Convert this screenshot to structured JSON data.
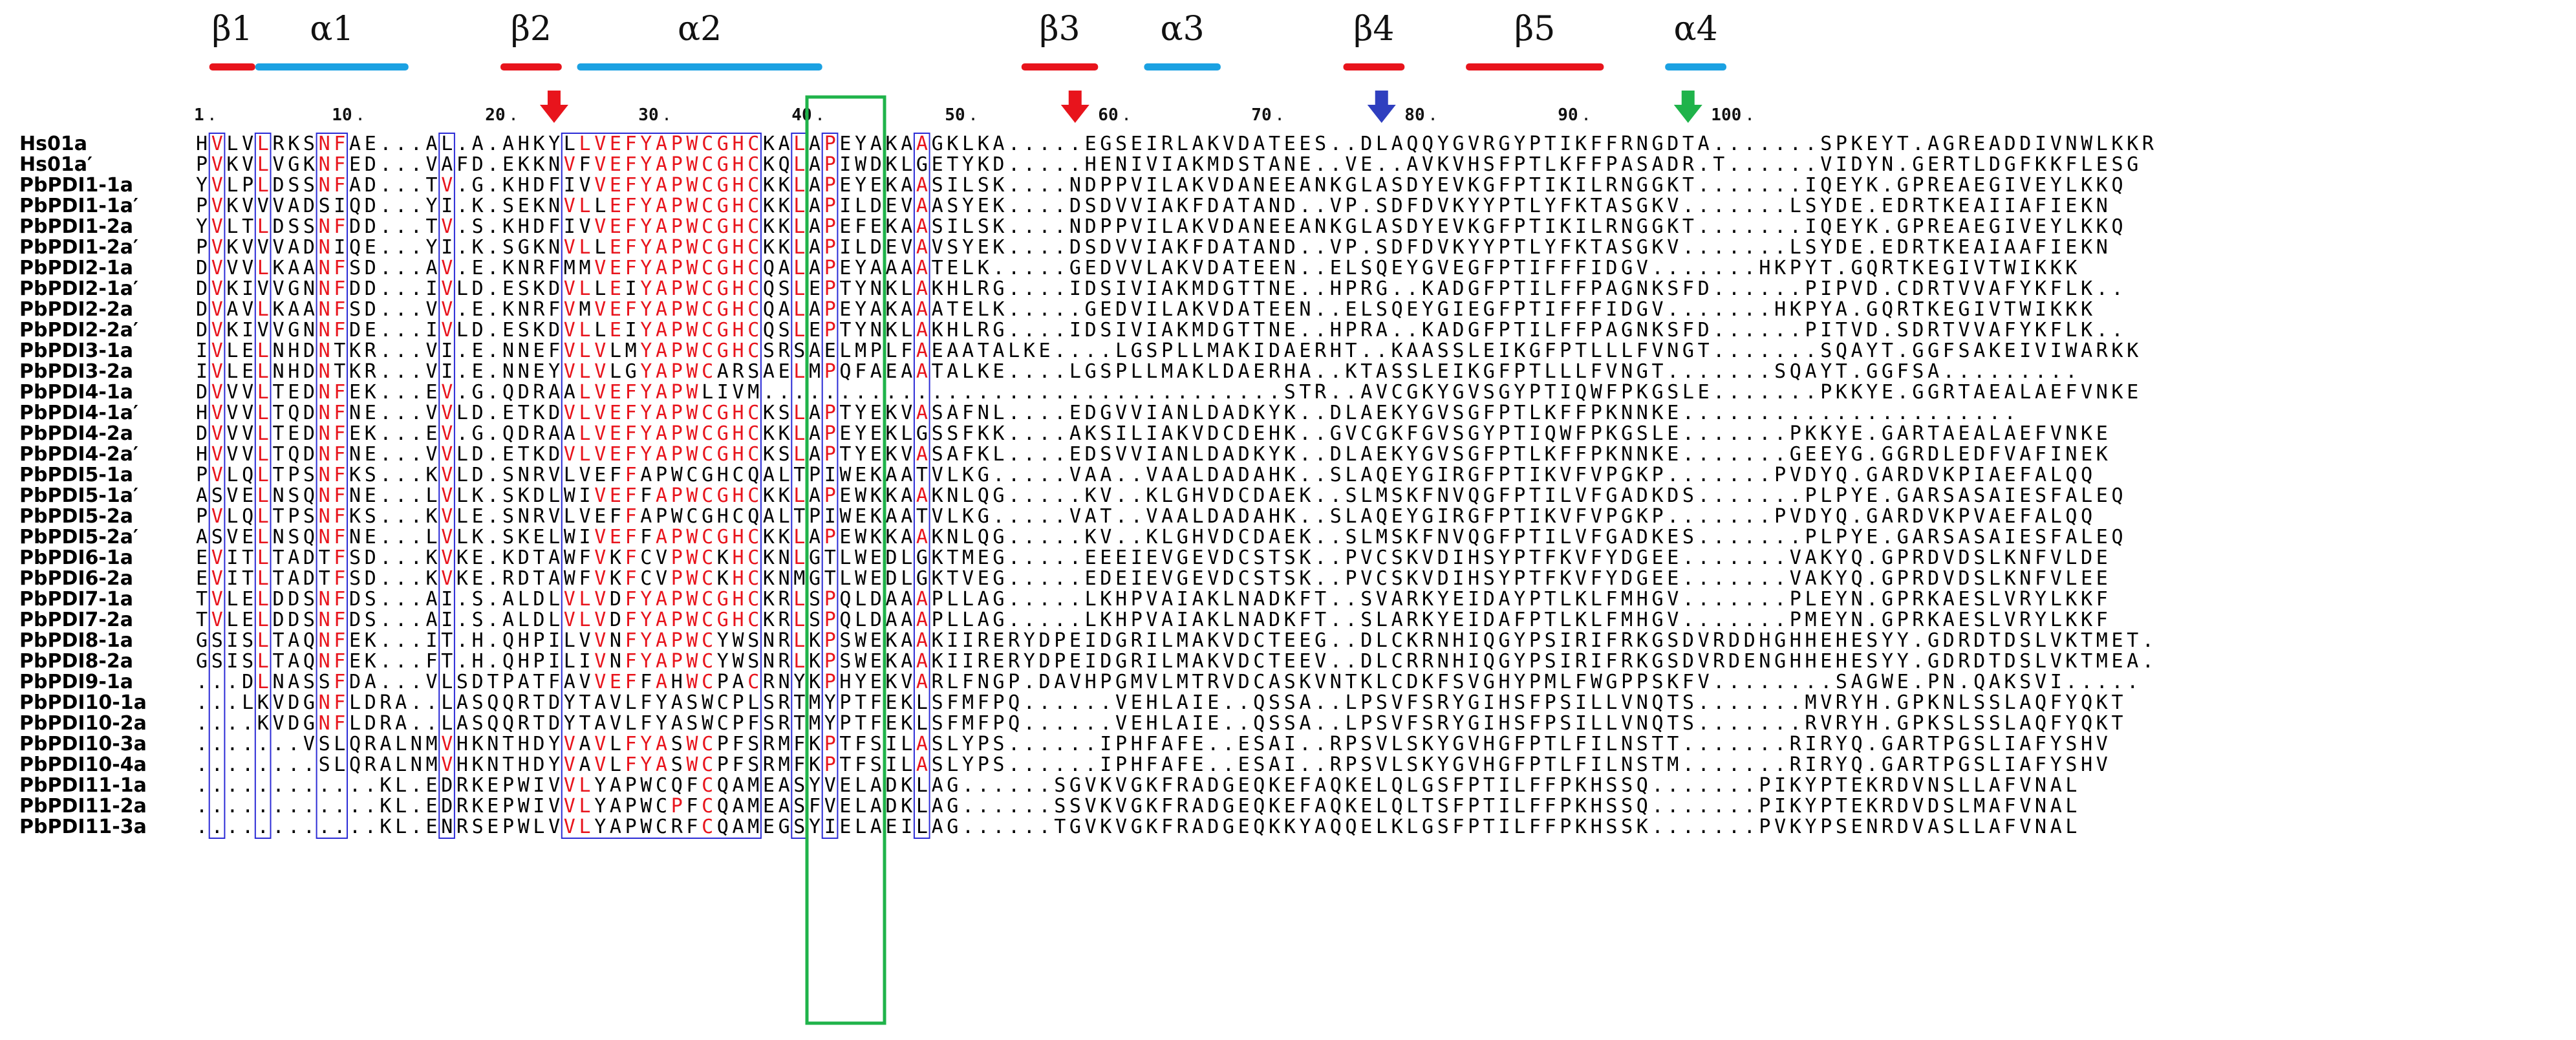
{
  "colors": {
    "strand": "#e8141c",
    "helix": "#1ba1e2",
    "identity_bg": "#e8141c",
    "similar_text": "#e8141c",
    "box": "#2b2bd6",
    "active_site_box": "#1fb34a",
    "arrow_red": "#e8141c",
    "arrow_blue": "#2f3fbf",
    "arrow_green": "#1fb34a"
  },
  "secondary_structure": [
    {
      "label": "β1",
      "type": "strand"
    },
    {
      "label": "α1",
      "type": "helix"
    },
    {
      "label": "β2",
      "type": "strand"
    },
    {
      "label": "α2",
      "type": "helix"
    },
    {
      "label": "β3",
      "type": "strand"
    },
    {
      "label": "α3",
      "type": "helix"
    },
    {
      "label": "β4",
      "type": "strand"
    },
    {
      "label": "β5",
      "type": "strand"
    },
    {
      "label": "α4",
      "type": "helix"
    }
  ],
  "markers": [
    {
      "color": "red",
      "icon": "down-arrow-icon",
      "column": 24
    },
    {
      "color": "red",
      "icon": "down-arrow-icon",
      "column": 58
    },
    {
      "color": "blue",
      "icon": "down-arrow-icon",
      "column": 78
    },
    {
      "color": "green",
      "icon": "down-arrow-icon",
      "column": 98
    }
  ],
  "ruler": [
    {
      "label": "1",
      "column": 1
    },
    {
      "label": "10",
      "column": 10
    },
    {
      "label": "20",
      "column": 20
    },
    {
      "label": "30",
      "column": 30
    },
    {
      "label": "40",
      "column": 40
    },
    {
      "label": "50",
      "column": 50
    },
    {
      "label": "60",
      "column": 60
    },
    {
      "label": "70",
      "column": 70
    },
    {
      "label": "80",
      "column": 80
    },
    {
      "label": "90",
      "column": 90
    },
    {
      "label": "100",
      "column": 100
    }
  ],
  "sequences": [
    {
      "name": "Hs01a",
      "seq": "HVLVLRKSNFAE...AL.A.AHKYLLVEFYAPWCGHCKALAPEYAKAAGKLKA.....EGSEIRLAKVDATEES..DLAQQYGVRGYPTIKFFRNGDTA.......SPKEYT.AGREADDIVNWLKKR"
    },
    {
      "name": "Hs01a′",
      "seq": "PVKVLVGKNFED...VAFD.EKKNVFVEFYAPWCGHCKQLAPIWDKLGETYKD.....HENIVIAKMDSTANE..VE..AVKVHSFPTLKFFPASADR.T......VIDYN.GERTLDGFKKFLESG"
    },
    {
      "name": "PbPDI1-1a",
      "seq": "YVLPLDSSNFAD...TV.G.KHDFIVVEFYAPWCGHCKKLAPEYEKAASILSK....NDPPVILAKVDANEEANKGLASDYEVKGFPTIKILRNGGKT.......IQEYK.GPREAEGIVEYLKKQ"
    },
    {
      "name": "PbPDI1-1a′",
      "seq": "PVKVVVADSIQD...YI.K.SEKNVLLEFYAPWCGHCKKLAPILDEVAASYEK....DSDVVIAKFDATAND..VP.SDFDVKYYPTLYFKTASGKV.......LSYDE.EDRTKEAIIAFIEKN"
    },
    {
      "name": "PbPDI1-2a",
      "seq": "YVLTLDSSNFDD...TV.S.KHDFIVVEFYAPWCGHCKKLAPEFEKAASILSK....NDPPVILAKVDANEEANKGLASDYEVKGFPTIKILRNGGKT.......IQEYK.GPREAEGIVEYLKKQ"
    },
    {
      "name": "PbPDI1-2a′",
      "seq": "PVKVVVADNIQE...YI.K.SGKNVLLEFYAPWCGHCKKLAPILDEVAVSYEK....DSDVVIAKFDATAND..VP.SDFDVKYYPTLYFKTASGKV.......LSYDE.EDRTKEAIAAFIEKN"
    },
    {
      "name": "PbPDI2-1a",
      "seq": "DVVVLKAANFSD...AV.E.KNRFMMVEFYAPWCGHCQALAPEYAAAATELK.....GEDVVLAKVDATEEN..ELSQEYGVEGFPTIFFFIDGV.......HKPYT.GQRTKEGIVTWIKKK"
    },
    {
      "name": "PbPDI2-1a′",
      "seq": "DVKIVVGNNFDD...IVLD.ESKDVLLEIYAPWCGHCQSLEPTYNKLAKHLRG....IDSIVIAKMDGTTNE..HPRG..KADGFPTILFFPAGNKSFD......PIPVD.CDRTVVAFYKFLK.."
    },
    {
      "name": "PbPDI2-2a",
      "seq": "DVAVLKAANFSD...VV.E.KNRFVMVEFYAPWCGHCQALAPEYAKAAATELK.....GEDVILAKVDATEEN..ELSQEYGIEGFPTIFFFIDGV.......HKPYA.GQRTKEGIVTWIKKK"
    },
    {
      "name": "PbPDI2-2a′",
      "seq": "DVKIVVGNNFDE...IVLD.ESKDVLLEIYAPWCGHCQSLEPTYNKLAKHLRG....IDSIVIAKMDGTTNE..HPRA..KADGFPTILFFPAGNKSFD......PITVD.SDRTVVAFYKFLK.."
    },
    {
      "name": "PbPDI3-1a",
      "seq": "IVLELNHDNTKR...VI.E.NNEFVLVLMYAPWCGHCSRSAELMPLFAEAATALKE....LGSPLLMAKIDAERHT..KAASSLEIKGFPTLLLFVNGT.......SQAYT.GGFSAKEIVIWARKK"
    },
    {
      "name": "PbPDI3-2a",
      "seq": "IVLELNHDNTKR...VI.E.NNEYVLVLGYAPWCARSAELMPQFAEAATALKE....LGSPLLMAKLDAERHA..KTASSLEIKGFPTLLLFVNGT.......SQAYT.GGFSA........."
    },
    {
      "name": "PbPDI4-1a",
      "seq": "DVVVLTEDNFEK...EV.G.QDRAALVEFYAPWLIVM..................................STR..AVCGKYGVSGYPTIQWFPKGSLE.......PKKYE.GGRTAEALAEFVNKE"
    },
    {
      "name": "PbPDI4-1a′",
      "seq": "HVVVLTQDNFNE...VVLD.ETKDVLVEFYAPWCGHCKSLAPTYEKVASAFNL....EDGVVIANLDADKYK..DLAEKYGVSGFPTLKFFPKNNKE......................"
    },
    {
      "name": "PbPDI4-2a",
      "seq": "DVVVLTEDNFEK...EV.G.QDRAALVEFYAPWCGHCKKLAPEYEKLGSSFKK....AKSILIAKVDCDEHK..GVCGKFGVSGYPTIQWFPKGSLE.......PKKYE.GARTAEALAEFVNKE"
    },
    {
      "name": "PbPDI4-2a′",
      "seq": "HVVVLTQDNFNE...VVLD.ETKDVLVEFYAPWCGHCKSLAPTYEKVASAFKL....EDSVVIANLDADKYK..DLAEKYGVSGFPTLKFFPKNNKE.......GEEYG.GGRDLEDFVAFINEK"
    },
    {
      "name": "PbPDI5-1a",
      "seq": "PVLQLTPSNFKS...KVLD.SNRVLVEFFAPWCGHCQALTPIWEKAATVLKG.....VAA..VAALDADAHK..SLAQEYGIRGFPTIKVFVPGKP.......PVDYQ.GARDVKPIAEFALQQ"
    },
    {
      "name": "PbPDI5-1a′",
      "seq": "ASVELNSQNFNE...LVLK.SKDLWIVEFFAPWCGHCKKLAPEWKKAAKNLQG.....KV..KLGHVDCDAEK..SLMSKFNVQGFPTILVFGADKDS.......PLPYE.GARSASAIESFALEQ"
    },
    {
      "name": "PbPDI5-2a",
      "seq": "PVLQLTPSNFKS...KVLE.SNRVLVEFFAPWCGHCQALTPIWEKAATVLKG.....VAT..VAALDADAHK..SLAQEYGIRGFPTIKVFVPGKP.......PVDYQ.GARDVKPVAEFALQQ"
    },
    {
      "name": "PbPDI5-2a′",
      "seq": "ASVELNSQNFNE...LVLK.SKELWIVEFFAPWCGHCKKLAPEWKKAAKNLQG.....KV..KLGHVDCDAEK..SLMSKFNVQGFPTILVFGADKES.......PLPYE.GARSASAIESFALEQ"
    },
    {
      "name": "PbPDI6-1a",
      "seq": "EVITLTADTFSD...KVKE.KDTAWFVKFCVPWCKHCKNLGTLWEDLGKTMEG.....EEEIEVGEVDCSTSK..PVCSKVDIHSYPTFKVFYDGEE.......VAKYQ.GPRDVDSLKNFVLDE"
    },
    {
      "name": "PbPDI6-2a",
      "seq": "EVITLTADTFSD...KVKE.RDTAWFVKFCVPWCKHCKNMGTLWEDLGKTVEG.....EDEIEVGEVDCSTSK..PVCSKVDIHSYPTFKVFYDGEE.......VAKYQ.GPRDVDSLKNFVLEE"
    },
    {
      "name": "PbPDI7-1a",
      "seq": "TVLELDDSNFDS...AI.S.ALDLVLVDFYAPWCGHCKRLSPQLDAAAPLLAG.....LKHPVAIAKLNADKFT..SVARKYEIDAYPTLKLFMHGV.......PLEYN.GPRKAESLVRYLKKF"
    },
    {
      "name": "PbPDI7-2a",
      "seq": "TVLELDDSNFDS...AI.S.ALDLVLVDFYAPWCGHCKRLSPQLDAAAPLLAG.....LKHPVAIAKLNADKFT..SLARKYEIDAFPTLKLFMHGV.......PMEYN.GPRKAESLVRYLKKF"
    },
    {
      "name": "PbPDI8-1a",
      "seq": "GSISLTAQNFEK...IT.H.QHPILVVNFYAPWCYWSNRLKPSWEKAAKIIRERYDPEIDGRILMAKVDCTEEG..DLCKRNHIQGYPSIRIFRKGSDVRDDHGHHEHESYY.GDRDTDSLVKTMET."
    },
    {
      "name": "PbPDI8-2a",
      "seq": "GSISLTAQNFEK...FT.H.QHPILIVNFYAPWCYWSNRLKPSWEKAAKIIRERYDPEIDGRILMAKVDCTEEV..DLCRRNHIQGYPSIRIFRKGSDVRDENGHHEHESYY.GDRDTDSLVKTMEA."
    },
    {
      "name": "PbPDI9-1a",
      "seq": "...DLNASSFDA...VLSDTPATFAVVEFFAHWCPACRNYKPHYEKVARLFNGP.DAVHPGMVLMTRVDCASKVNTKLCDKFSVGHYPMLFWGPPSKFV........SAGWE.PN.QAKSVI....."
    },
    {
      "name": "PbPDI10-1a",
      "seq": "...LKVDGNFLDRA..LASQQRTDYTAVLFYASWCPLSRTMYPTFEKLSFMFPQ......VEHLAIE..QSSA..LPSVFSRYGIHSFPSILLVNQTS.......MVRYH.GPKNLSSLAQFYQKT"
    },
    {
      "name": "PbPDI10-2a",
      "seq": "....KVDGNFLDRA..LASQQRTDYTAVLFYASWCPFSRTMYPTFEKLSFMFPQ......VEHLAIE..QSSA..LPSVFSRYGIHSFPSILLVNQTS.......RVRYH.GPKSLSSLAQFYQKT"
    },
    {
      "name": "PbPDI10-3a",
      "seq": ".......VSLQRALNMVHKNTHDYVAVLFYASWCPFSRMFKPTFSILASLYPS......IPHFAFE..ESAI..RPSVLSKYGVHGFPTLFILNSTT.......RIRYQ.GARTPGSLIAFYSHV"
    },
    {
      "name": "PbPDI10-4a",
      "seq": "........SLQRALNMVHKNTHDYVAVLFYASWCPFSRMFKPTFSILASLYPS......IPHFAFE..ESAI..RPSVLSKYGVHGFPTLFILNSTM.......RIRYQ.GARTPGSLIAFYSHV"
    },
    {
      "name": "PbPDI11-1a",
      "seq": "............KL.EDRKEPWIVVLYAPWCQFCQAMEASYVELADKLAG......SGVKVGKFRADGEQKEFAQKELQLGSFPTILFFPKHSSQ.......PIKYPTEKRDVNSLLAFVNAL"
    },
    {
      "name": "PbPDI11-2a",
      "seq": "............KL.EDRKEPWIVVLYAPWCPFCQAMEASFVELADKLAG......SSVKVGKFRADGEQKEFAQKELQLTSFPTILFFPKHSSQ.......PIKYPTEKRDVDSLMAFVNAL"
    },
    {
      "name": "PbPDI11-3a",
      "seq": "............KL.ENRSEPWLVVLYAPWCRFCQAMEGSYIELAEILAG......TGVKVGKFRADGEQKKYAQQELKLGSFPTILFFPKHSSK.......PVKYPSENRDVASLLAFVNAL"
    }
  ]
}
